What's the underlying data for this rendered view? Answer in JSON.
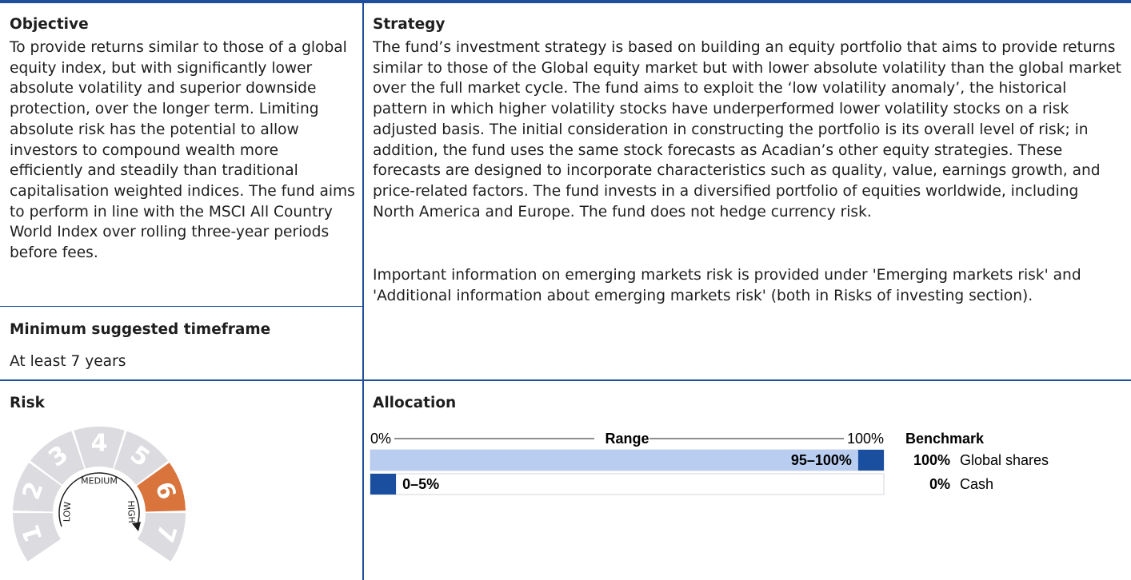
{
  "objective": {
    "title": "Objective",
    "text": "To provide returns similar to those of a global equity index, but with significantly lower absolute volatility and superior downside protection, over the longer term. Limiting absolute risk has the potential to allow investors to compound wealth more efficiently and steadily than traditional capitalisation weighted indices. The fund aims to perform in line with the MSCI All Country World Index over rolling three-year periods before fees."
  },
  "timeframe": {
    "title": "Minimum suggested timeframe",
    "text": "At least 7 years"
  },
  "strategy": {
    "title": "Strategy",
    "paragraphs": [
      "The fund’s investment strategy is based on building an equity portfolio that aims to provide returns similar to those of the Global equity market but with lower absolute volatility than the global market over the full market cycle. The fund aims to exploit the ‘low volatility anomaly’, the historical pattern in which higher volatility stocks have underperformed lower volatility stocks on a risk adjusted basis. The initial consideration in constructing the portfolio is its overall level of risk; in addition, the fund uses the same stock forecasts as Acadian’s other equity strategies. These forecasts are designed to incorporate characteristics such as quality, value, earnings growth, and price-related factors. The fund invests in a diversified portfolio of equities worldwide, including North America and Europe. The fund does not hedge currency risk.",
      "Important information on emerging markets risk is provided under 'Emerging markets risk' and 'Additional information about emerging markets risk' (both in Risks of investing section)."
    ]
  },
  "risk": {
    "title": "Risk",
    "levels": [
      1,
      2,
      3,
      4,
      5,
      6,
      7
    ],
    "level": 6,
    "labels": [
      "LOW",
      "MEDIUM",
      "HIGH"
    ]
  },
  "allocation": {
    "title": "Allocation",
    "range_title": "Range",
    "benchmark_title": "Benchmark",
    "scale": [
      {
        "value": 0,
        "label": "0%"
      },
      {
        "value": 100,
        "label": "100%"
      }
    ],
    "rows": [
      {
        "range": "95–100%",
        "min": 95,
        "max": 100,
        "benchmark": "100%",
        "asset": "Global shares"
      },
      {
        "range": "0–5%",
        "min": 0,
        "max": 5,
        "benchmark": "0%",
        "asset": "Cash"
      }
    ]
  }
}
